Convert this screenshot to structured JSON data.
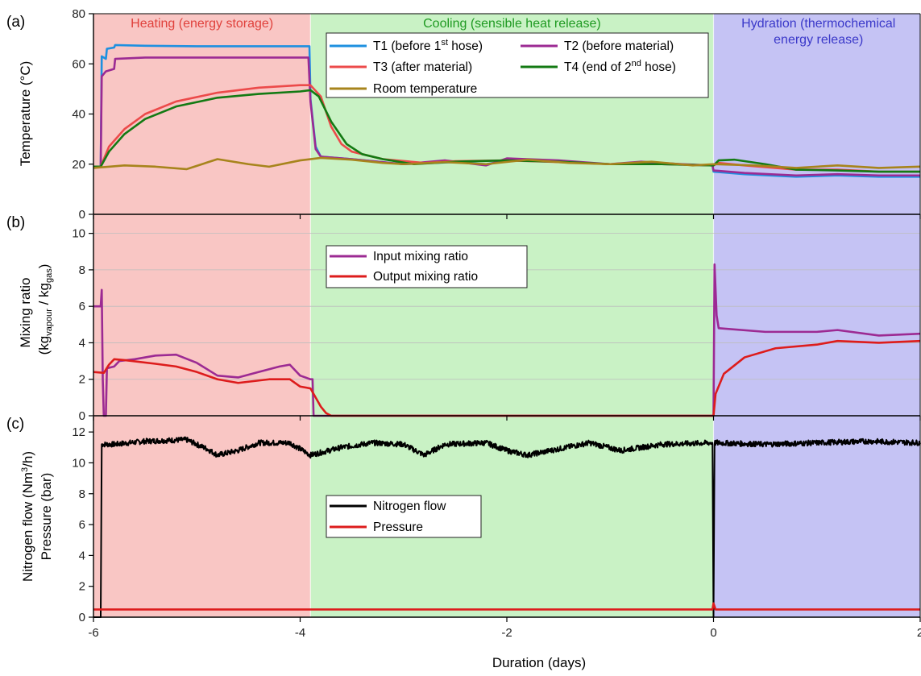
{
  "chart_data": [
    {
      "type": "line",
      "panel_letter": "(a)",
      "ylabel": "Temperature (°C)",
      "ylim": [
        0,
        80
      ],
      "yticks": [
        "0",
        "20",
        "40",
        "60",
        "80"
      ],
      "xlim": [
        -6,
        2
      ],
      "legend_placement": "top-right",
      "grid": false,
      "phases": [
        {
          "label": "Heating (energy storage)",
          "x_range": [
            -6,
            -3.9
          ],
          "fill": "#f9c6c4",
          "text_color": "#e0413c"
        },
        {
          "label": "Cooling (sensible heat release)",
          "x_range": [
            -3.9,
            0
          ],
          "fill": "#c9f2c5",
          "text_color": "#1f9a22"
        },
        {
          "label_lines": [
            "Hydration (thermochemical",
            "energy release)"
          ],
          "x_range": [
            0,
            2
          ],
          "fill": "#c5c3f4",
          "text_color": "#3a38c9"
        }
      ],
      "series": [
        {
          "name": "T1 (before 1",
          "name_sup": "st",
          "name_tail": " hose)",
          "color": "#1e90e0",
          "points": [
            [
              -6,
              19
            ],
            [
              -5.93,
              19
            ],
            [
              -5.92,
              63
            ],
            [
              -5.88,
              62
            ],
            [
              -5.87,
              66
            ],
            [
              -5.8,
              66.5
            ],
            [
              -5.79,
              67.5
            ],
            [
              -5.5,
              67.2
            ],
            [
              -5,
              67
            ],
            [
              -4.5,
              67
            ],
            [
              -3.91,
              67
            ],
            [
              -3.9,
              46
            ],
            [
              -3.85,
              27
            ],
            [
              -3.8,
              23
            ],
            [
              -3.5,
              22
            ],
            [
              -3.0,
              20
            ],
            [
              -2.5,
              20.8
            ],
            [
              -2.2,
              20
            ],
            [
              -2.0,
              21.5
            ],
            [
              -1.5,
              21
            ],
            [
              -1.0,
              20
            ],
            [
              -0.5,
              20
            ],
            [
              -0.01,
              19.5
            ],
            [
              0,
              17
            ],
            [
              0.3,
              16
            ],
            [
              0.8,
              15
            ],
            [
              1.2,
              15.5
            ],
            [
              1.6,
              15
            ],
            [
              2,
              15
            ]
          ]
        },
        {
          "name": "T2 (before material)",
          "color": "#9c2a93",
          "points": [
            [
              -6,
              19
            ],
            [
              -5.93,
              19
            ],
            [
              -5.92,
              55
            ],
            [
              -5.88,
              57
            ],
            [
              -5.8,
              58
            ],
            [
              -5.79,
              62
            ],
            [
              -5.5,
              62.5
            ],
            [
              -5,
              62.5
            ],
            [
              -4.5,
              62.5
            ],
            [
              -3.92,
              62.5
            ],
            [
              -3.9,
              45
            ],
            [
              -3.85,
              26
            ],
            [
              -3.8,
              23
            ],
            [
              -3.5,
              22
            ],
            [
              -3.0,
              20
            ],
            [
              -2.6,
              21.5
            ],
            [
              -2.2,
              19.5
            ],
            [
              -2.0,
              22.3
            ],
            [
              -1.5,
              21.5
            ],
            [
              -1.0,
              20
            ],
            [
              -0.7,
              21
            ],
            [
              -0.3,
              20
            ],
            [
              -0.01,
              19.5
            ],
            [
              0,
              17.5
            ],
            [
              0.3,
              16.5
            ],
            [
              0.8,
              15.5
            ],
            [
              1.2,
              16
            ],
            [
              1.6,
              15.5
            ],
            [
              2,
              15.5
            ]
          ]
        },
        {
          "name": "T3 (after material)",
          "color": "#ec4a4a",
          "points": [
            [
              -6,
              19
            ],
            [
              -5.93,
              19
            ],
            [
              -5.85,
              27
            ],
            [
              -5.7,
              34
            ],
            [
              -5.5,
              40
            ],
            [
              -5.2,
              45
            ],
            [
              -4.8,
              48.5
            ],
            [
              -4.4,
              50.5
            ],
            [
              -4.0,
              51.5
            ],
            [
              -3.9,
              51.5
            ],
            [
              -3.8,
              47
            ],
            [
              -3.7,
              35
            ],
            [
              -3.6,
              28
            ],
            [
              -3.5,
              25
            ],
            [
              -3.2,
              22
            ],
            [
              -2.8,
              20.5
            ],
            [
              -2.5,
              21.2
            ],
            [
              -2.0,
              21.5
            ],
            [
              -1.6,
              21
            ],
            [
              -1.0,
              20
            ],
            [
              -0.5,
              20
            ],
            [
              0,
              19.5
            ],
            [
              0.05,
              20.5
            ],
            [
              0.3,
              19.5
            ],
            [
              0.8,
              17.8
            ],
            [
              1.2,
              17.8
            ],
            [
              1.6,
              17
            ],
            [
              2,
              17
            ]
          ]
        },
        {
          "name": "T4 (end of 2",
          "name_sup": "nd",
          "name_tail": " hose)",
          "color": "#137a13",
          "points": [
            [
              -6,
              19
            ],
            [
              -5.93,
              19
            ],
            [
              -5.85,
              25
            ],
            [
              -5.7,
              32
            ],
            [
              -5.5,
              38
            ],
            [
              -5.2,
              43
            ],
            [
              -4.8,
              46.5
            ],
            [
              -4.4,
              48
            ],
            [
              -4.0,
              49
            ],
            [
              -3.9,
              49.5
            ],
            [
              -3.82,
              47
            ],
            [
              -3.7,
              37
            ],
            [
              -3.55,
              28
            ],
            [
              -3.4,
              24
            ],
            [
              -3.2,
              22
            ],
            [
              -2.9,
              20
            ],
            [
              -2.5,
              21
            ],
            [
              -2.0,
              21.5
            ],
            [
              -1.5,
              21
            ],
            [
              -1.0,
              20
            ],
            [
              -0.5,
              20
            ],
            [
              0,
              19.5
            ],
            [
              0.05,
              21.5
            ],
            [
              0.2,
              21.8
            ],
            [
              0.5,
              20
            ],
            [
              0.8,
              17.8
            ],
            [
              1.2,
              17.5
            ],
            [
              1.6,
              17
            ],
            [
              2,
              17
            ]
          ]
        },
        {
          "name": "Room temperature",
          "color": "#a7841c",
          "points": [
            [
              -6,
              18.5
            ],
            [
              -5.7,
              19.5
            ],
            [
              -5.4,
              19
            ],
            [
              -5.1,
              18
            ],
            [
              -4.8,
              22
            ],
            [
              -4.5,
              20
            ],
            [
              -4.3,
              19
            ],
            [
              -4.0,
              21.5
            ],
            [
              -3.8,
              22.5
            ],
            [
              -3.5,
              21.8
            ],
            [
              -3.2,
              20.5
            ],
            [
              -3.0,
              20
            ],
            [
              -2.6,
              20.8
            ],
            [
              -2.2,
              20
            ],
            [
              -1.8,
              21.8
            ],
            [
              -1.4,
              20.5
            ],
            [
              -1.0,
              20
            ],
            [
              -0.6,
              21
            ],
            [
              -0.2,
              19.5
            ],
            [
              0,
              20
            ],
            [
              0.4,
              19.5
            ],
            [
              0.8,
              18.5
            ],
            [
              1.2,
              19.5
            ],
            [
              1.6,
              18.5
            ],
            [
              2,
              19
            ]
          ]
        }
      ]
    },
    {
      "type": "line",
      "panel_letter": "(b)",
      "ylabel_lines": [
        "Mixing ratio",
        "(kg",
        "vapour",
        " / kg",
        "gas",
        ")"
      ],
      "ylim": [
        0,
        11
      ],
      "yticks": [
        "0",
        "2",
        "4",
        "6",
        "8",
        "10"
      ],
      "xlim": [
        -6,
        2
      ],
      "legend_placement": "top-center",
      "grid": true,
      "series": [
        {
          "name": "Input mixing ratio",
          "color": "#9c2a93",
          "points": [
            [
              -6,
              6
            ],
            [
              -5.93,
              6
            ],
            [
              -5.92,
              6.9
            ],
            [
              -5.91,
              2
            ],
            [
              -5.9,
              0
            ],
            [
              -5.88,
              0
            ],
            [
              -5.87,
              2.6
            ],
            [
              -5.8,
              2.7
            ],
            [
              -5.75,
              3.0
            ],
            [
              -5.6,
              3.1
            ],
            [
              -5.4,
              3.3
            ],
            [
              -5.2,
              3.35
            ],
            [
              -5.0,
              2.9
            ],
            [
              -4.8,
              2.2
            ],
            [
              -4.6,
              2.1
            ],
            [
              -4.4,
              2.4
            ],
            [
              -4.2,
              2.7
            ],
            [
              -4.1,
              2.8
            ],
            [
              -4.0,
              2.2
            ],
            [
              -3.9,
              2.0
            ],
            [
              -3.88,
              2.0
            ],
            [
              -3.87,
              0
            ],
            [
              -3.6,
              0
            ],
            [
              0,
              0
            ],
            [
              0.01,
              8.3
            ],
            [
              0.03,
              5.5
            ],
            [
              0.05,
              4.8
            ],
            [
              0.5,
              4.6
            ],
            [
              1.0,
              4.6
            ],
            [
              1.2,
              4.7
            ],
            [
              1.6,
              4.4
            ],
            [
              2,
              4.5
            ]
          ]
        },
        {
          "name": "Output mixing ratio",
          "color": "#dd1c1c",
          "points": [
            [
              -6,
              2.4
            ],
            [
              -5.9,
              2.35
            ],
            [
              -5.85,
              2.8
            ],
            [
              -5.8,
              3.1
            ],
            [
              -5.7,
              3.05
            ],
            [
              -5.4,
              2.85
            ],
            [
              -5.2,
              2.7
            ],
            [
              -5.0,
              2.4
            ],
            [
              -4.8,
              2.0
            ],
            [
              -4.6,
              1.8
            ],
            [
              -4.3,
              2.0
            ],
            [
              -4.1,
              2.0
            ],
            [
              -4.0,
              1.6
            ],
            [
              -3.9,
              1.5
            ],
            [
              -3.85,
              1.0
            ],
            [
              -3.8,
              0.5
            ],
            [
              -3.75,
              0.15
            ],
            [
              -3.7,
              0
            ],
            [
              0,
              0
            ],
            [
              0.02,
              1.2
            ],
            [
              0.1,
              2.3
            ],
            [
              0.3,
              3.2
            ],
            [
              0.6,
              3.7
            ],
            [
              1.0,
              3.9
            ],
            [
              1.2,
              4.1
            ],
            [
              1.6,
              4.0
            ],
            [
              2,
              4.1
            ]
          ]
        }
      ]
    },
    {
      "type": "line",
      "panel_letter": "(c)",
      "ylabel_lines": [
        "Nitrogen flow (Nm",
        "3",
        "/h)",
        "Pressure (bar)"
      ],
      "ylim": [
        0,
        13
      ],
      "yticks": [
        "0",
        "2",
        "4",
        "6",
        "8",
        "10",
        "12"
      ],
      "xlim": [
        -6,
        2
      ],
      "xticks": [
        "-6",
        "-4",
        "-2",
        "0",
        "2"
      ],
      "xlabel": "Duration (days)",
      "legend_placement": "center",
      "grid": false,
      "series": [
        {
          "name": "Nitrogen flow",
          "color": "#000000",
          "noisy": true,
          "points": [
            [
              -6,
              0
            ],
            [
              -5.93,
              0
            ],
            [
              -5.92,
              11.2
            ],
            [
              -5.8,
              11.2
            ],
            [
              -5.5,
              11.4
            ],
            [
              -5.1,
              11.5
            ],
            [
              -4.9,
              10.9
            ],
            [
              -4.8,
              10.5
            ],
            [
              -4.6,
              10.8
            ],
            [
              -4.4,
              11.3
            ],
            [
              -4.1,
              11.3
            ],
            [
              -3.9,
              10.5
            ],
            [
              -3.6,
              11.0
            ],
            [
              -3.3,
              11.3
            ],
            [
              -3.0,
              11.2
            ],
            [
              -2.8,
              10.5
            ],
            [
              -2.6,
              11.2
            ],
            [
              -2.2,
              11.3
            ],
            [
              -2.0,
              10.8
            ],
            [
              -1.8,
              10.5
            ],
            [
              -1.5,
              10.9
            ],
            [
              -1.2,
              11.3
            ],
            [
              -0.9,
              10.8
            ],
            [
              -0.5,
              11.2
            ],
            [
              -0.01,
              11.3
            ],
            [
              0,
              0
            ],
            [
              0.01,
              11.3
            ],
            [
              0.5,
              11.2
            ],
            [
              1.0,
              11.3
            ],
            [
              1.5,
              11.4
            ],
            [
              2,
              11.3
            ]
          ]
        },
        {
          "name": "Pressure",
          "color": "#dd1c1c",
          "points": [
            [
              -6,
              0.5
            ],
            [
              -0.01,
              0.5
            ],
            [
              0,
              0.9
            ],
            [
              0.02,
              0.5
            ],
            [
              2,
              0.5
            ]
          ]
        }
      ]
    }
  ]
}
